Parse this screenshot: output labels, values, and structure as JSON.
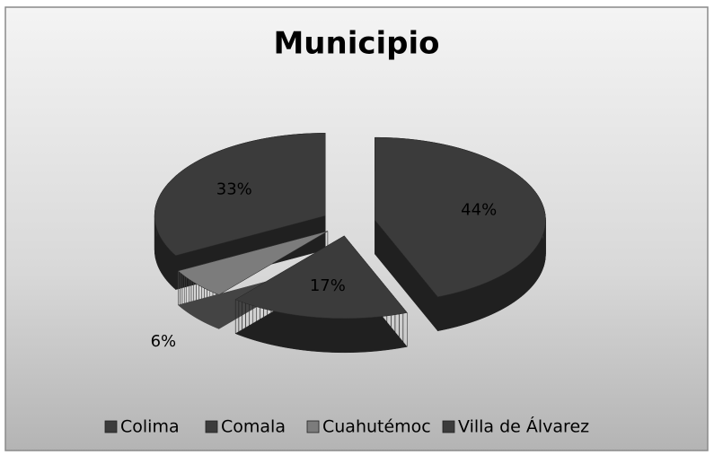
{
  "chart_data": {
    "type": "pie",
    "title": "Municipio",
    "categories": [
      "Colima",
      "Comala",
      "Cuahutémoc",
      "Villa de Álvarez"
    ],
    "values": [
      44,
      17,
      6,
      33
    ],
    "value_labels": [
      "44%",
      "17%",
      "6%",
      "33%"
    ],
    "colors": [
      "#3b3b3b",
      "#3b3b3b",
      "#7c7c7c",
      "#3b3b3b"
    ],
    "legend": "bottom"
  }
}
